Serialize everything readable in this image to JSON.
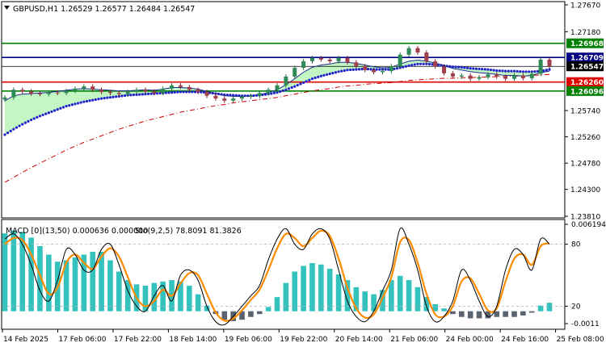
{
  "symbol_header": "GBPUSD,H1  1.26529 1.26577 1.26484 1.26547",
  "macd_header": "MACD [0](13,50) 0.000636 0.000000",
  "stoch_header": "Sto(9,2,5) 78.8091 81.3826",
  "time_labels": [
    "14 Feb 2025",
    "17 Feb 06:00",
    "17 Feb 22:00",
    "18 Feb 14:00",
    "19 Feb 06:00",
    "19 Feb 22:00",
    "20 Feb 14:00",
    "21 Feb 06:00",
    "24 Feb 00:00",
    "24 Feb 16:00",
    "25 Feb 08:00"
  ],
  "price_axis_labels": [
    "1.27670",
    "1.27180",
    "1.26968",
    "1.26709",
    "1.26547",
    "1.26260",
    "1.26096",
    "1.25740",
    "1.25260",
    "1.24780",
    "1.24300",
    "1.23810"
  ],
  "indicator_axis_labels": [
    "0.006194",
    "80",
    "20",
    "-0.0011"
  ],
  "colors": {
    "resistance_line": "#008000",
    "level_line": "#000080",
    "support_red": "#e00000",
    "support_green": "#008000",
    "current_price": "#000000",
    "histogram": "#33c2bd",
    "histogram_neg": "#5a6470",
    "stoch_main": "#000000",
    "stoch_signal": "#ff8c00",
    "ma_blue_dots": "#2222cc",
    "ma_red_dash": "#cc0000",
    "cloud_green": "#90ee90"
  },
  "chart_data": [
    {
      "type": "candlestick",
      "title": "GBPUSD,H1",
      "ohlc_last": {
        "open": 1.26529,
        "high": 1.26577,
        "low": 1.26484,
        "close": 1.26547
      },
      "ylim": [
        1.2381,
        1.2767
      ],
      "levels": [
        {
          "name": "resistance",
          "value": 1.26968,
          "color": "green"
        },
        {
          "name": "level",
          "value": 1.26709,
          "color": "navy"
        },
        {
          "name": "current",
          "value": 1.26547,
          "color": "black"
        },
        {
          "name": "support",
          "value": 1.2626,
          "color": "red"
        },
        {
          "name": "support",
          "value": 1.26096,
          "color": "green"
        }
      ],
      "close_path": [
        1.2598,
        1.2612,
        1.2609,
        1.2605,
        1.2604,
        1.2607,
        1.2606,
        1.261,
        1.2614,
        1.2618,
        1.2612,
        1.2608,
        1.2606,
        1.2604,
        1.2608,
        1.2612,
        1.2609,
        1.2606,
        1.2614,
        1.262,
        1.2617,
        1.2612,
        1.2608,
        1.2601,
        1.2596,
        1.2592,
        1.2596,
        1.2599,
        1.2601,
        1.2606,
        1.2612,
        1.262,
        1.2636,
        1.2652,
        1.2664,
        1.267,
        1.2667,
        1.2664,
        1.267,
        1.2662,
        1.2655,
        1.2648,
        1.2644,
        1.2646,
        1.2655,
        1.2676,
        1.2688,
        1.268,
        1.2664,
        1.2654,
        1.2642,
        1.2636,
        1.2638,
        1.2632,
        1.2635,
        1.264,
        1.2636,
        1.2632,
        1.2638,
        1.2633,
        1.2641,
        1.2667,
        1.2655
      ],
      "ma_fast": [
        1.2592,
        1.2601,
        1.2604,
        1.2605,
        1.2606,
        1.2607,
        1.2609,
        1.2611,
        1.2613,
        1.2614,
        1.2613,
        1.2612,
        1.2611,
        1.261,
        1.261,
        1.2611,
        1.2612,
        1.2611,
        1.2613,
        1.2616,
        1.2616,
        1.2615,
        1.2613,
        1.2609,
        1.2605,
        1.2601,
        1.26,
        1.26,
        1.2601,
        1.2603,
        1.2607,
        1.2612,
        1.2621,
        1.2632,
        1.2644,
        1.2653,
        1.2657,
        1.2659,
        1.2662,
        1.2662,
        1.266,
        1.2657,
        1.2654,
        1.2652,
        1.2653,
        1.2659,
        1.2664,
        1.2666,
        1.2664,
        1.2661,
        1.2656,
        1.2651,
        1.2648,
        1.2645,
        1.2643,
        1.2642,
        1.264,
        1.2638,
        1.2638,
        1.2637,
        1.2638,
        1.2643,
        1.2646
      ],
      "ma_dots": [
        1.253,
        1.254,
        1.2549,
        1.2557,
        1.2564,
        1.257,
        1.2576,
        1.2582,
        1.2586,
        1.259,
        1.2593,
        1.2596,
        1.2598,
        1.26,
        1.2602,
        1.2603,
        1.2604,
        1.2605,
        1.2606,
        1.2607,
        1.2608,
        1.2608,
        1.2608,
        1.2607,
        1.2605,
        1.2603,
        1.2602,
        1.2601,
        1.2601,
        1.2602,
        1.2604,
        1.2607,
        1.2612,
        1.2618,
        1.2625,
        1.2632,
        1.2637,
        1.2641,
        1.2645,
        1.2648,
        1.2649,
        1.265,
        1.2649,
        1.2649,
        1.2649,
        1.2652,
        1.2656,
        1.2659,
        1.2659,
        1.2658,
        1.2656,
        1.2654,
        1.2653,
        1.2651,
        1.265,
        1.2649,
        1.2647,
        1.2646,
        1.2646,
        1.2645,
        1.2645,
        1.2646,
        1.2649
      ],
      "ma_dash": [
        1.2443,
        1.2452,
        1.2461,
        1.247,
        1.2478,
        1.2486,
        1.2494,
        1.2502,
        1.2509,
        1.2516,
        1.2522,
        1.2528,
        1.2534,
        1.254,
        1.2545,
        1.255,
        1.2555,
        1.2559,
        1.2563,
        1.2567,
        1.2571,
        1.2574,
        1.2577,
        1.258,
        1.2583,
        1.2585,
        1.2588,
        1.259,
        1.2592,
        1.2594,
        1.2596,
        1.2598,
        1.2601,
        1.2604,
        1.2607,
        1.261,
        1.2612,
        1.2614,
        1.2617,
        1.2619,
        1.262,
        1.2622,
        1.2623,
        1.2624,
        1.2625,
        1.2627,
        1.2629,
        1.263,
        1.2631,
        1.2632,
        1.2633,
        1.2633,
        1.2634,
        1.2634,
        1.2635,
        1.2635,
        1.2636,
        1.2636,
        1.2637,
        1.2637,
        1.2638,
        1.2639,
        1.264
      ]
    },
    {
      "type": "bar",
      "title": "MACD [0](13,50)",
      "values": [
        0.0055,
        0.0057,
        0.0056,
        0.0052,
        0.0046,
        0.004,
        0.0035,
        0.0036,
        0.0038,
        0.004,
        0.0042,
        0.0042,
        0.0036,
        0.0028,
        0.0022,
        0.0019,
        0.0018,
        0.002,
        0.0021,
        0.0022,
        0.0021,
        0.0018,
        0.0012,
        0.0004,
        -0.0002,
        -0.0006,
        -0.0007,
        -0.0006,
        -0.0004,
        -0.0002,
        0.0003,
        0.001,
        0.002,
        0.0028,
        0.0032,
        0.0034,
        0.0033,
        0.003,
        0.0026,
        0.0022,
        0.0017,
        0.0014,
        0.0012,
        0.0015,
        0.0022,
        0.0025,
        0.0022,
        0.0017,
        0.001,
        0.0005,
        0.0002,
        -0.0002,
        -0.0004,
        -0.0005,
        -0.0005,
        -0.0005,
        -0.0004,
        -0.0004,
        -0.0004,
        -0.0003,
        -0.0001,
        0.0004,
        0.0006
      ],
      "ylim": [
        -0.0011,
        0.006194
      ]
    },
    {
      "type": "line",
      "title": "Sto(9,2,5)",
      "ylim": [
        0,
        100
      ],
      "levels": [
        80,
        20
      ],
      "series": [
        {
          "name": "main",
          "values": [
            85,
            90,
            80,
            60,
            35,
            25,
            45,
            75,
            70,
            55,
            55,
            75,
            80,
            60,
            35,
            20,
            15,
            30,
            40,
            25,
            50,
            55,
            45,
            20,
            5,
            2,
            10,
            20,
            30,
            40,
            65,
            85,
            95,
            80,
            75,
            90,
            95,
            85,
            55,
            25,
            10,
            5,
            15,
            35,
            55,
            95,
            80,
            55,
            20,
            5,
            10,
            25,
            55,
            45,
            25,
            10,
            20,
            55,
            75,
            70,
            55,
            85,
            80
          ]
        },
        {
          "name": "signal",
          "values": [
            80,
            86,
            84,
            70,
            50,
            32,
            38,
            62,
            70,
            62,
            56,
            68,
            76,
            68,
            48,
            28,
            20,
            25,
            36,
            30,
            42,
            52,
            50,
            32,
            14,
            6,
            8,
            16,
            26,
            36,
            55,
            76,
            90,
            86,
            78,
            86,
            93,
            88,
            66,
            38,
            18,
            9,
            12,
            28,
            48,
            82,
            84,
            62,
            32,
            12,
            10,
            20,
            44,
            47,
            32,
            16,
            18,
            44,
            66,
            70,
            60,
            78,
            81
          ]
        }
      ]
    }
  ]
}
